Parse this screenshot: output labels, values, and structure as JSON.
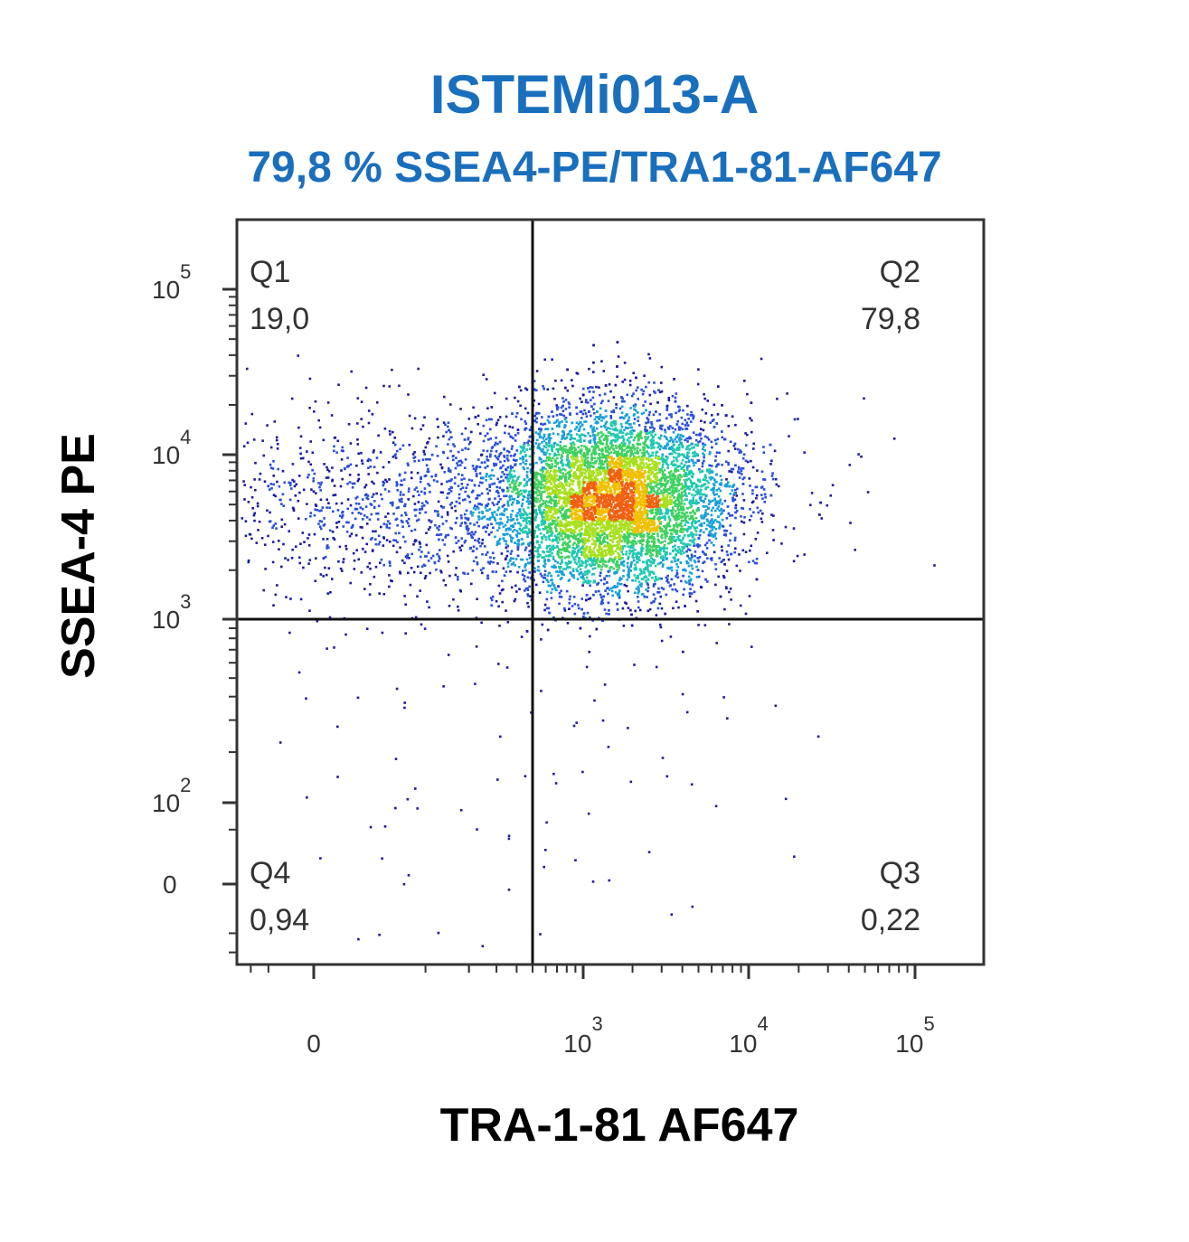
{
  "title": "ISTEMi013-A",
  "subtitle": "79,8 % SSEA4-PE/TRA1-81-AF647",
  "colors": {
    "title": "#1a6fbd",
    "density_scale": [
      "#1c1c9c",
      "#2a4fd8",
      "#1aa0d8",
      "#20c8b0",
      "#40d060",
      "#a8e020",
      "#f0c000",
      "#f06010"
    ]
  },
  "chart_data": {
    "type": "scatter",
    "subtype": "flow-cytometry density dot plot (pseudocolor)",
    "xlabel": "TRA-1-81 AF647",
    "ylabel": "SSEA-4 PE",
    "x_scale": "biexponential",
    "y_scale": "biexponential",
    "x_ticks": [
      {
        "value": 0,
        "base": "0",
        "exp": ""
      },
      {
        "value": 1000,
        "base": "10",
        "exp": "3"
      },
      {
        "value": 10000,
        "base": "10",
        "exp": "4"
      },
      {
        "value": 100000,
        "base": "10",
        "exp": "5"
      }
    ],
    "y_ticks": [
      {
        "value": 0,
        "base": "0",
        "exp": ""
      },
      {
        "value": 100,
        "base": "10",
        "exp": "2"
      },
      {
        "value": 1000,
        "base": "10",
        "exp": "3"
      },
      {
        "value": 10000,
        "base": "10",
        "exp": "4"
      },
      {
        "value": 100000,
        "base": "10",
        "exp": "5"
      }
    ],
    "gates": {
      "x": 500,
      "y": 1000
    },
    "quadrants": [
      {
        "name": "Q1",
        "value": "19,0",
        "position": "top-left"
      },
      {
        "name": "Q2",
        "value": "79,8",
        "position": "top-right"
      },
      {
        "name": "Q3",
        "value": "0,22",
        "position": "bottom-right"
      },
      {
        "name": "Q4",
        "value": "0,94",
        "position": "bottom-left"
      }
    ],
    "populations": [
      {
        "center": [
          1500,
          5500
        ],
        "spread_decades": [
          0.35,
          0.28
        ],
        "share": 0.798
      },
      {
        "center": [
          130,
          5000
        ],
        "spread_decades": [
          0.9,
          0.3
        ],
        "share": 0.19
      },
      {
        "center": [
          120,
          100
        ],
        "spread_decades": [
          0.8,
          0.9
        ],
        "share": 0.0094
      },
      {
        "center": [
          3000,
          300
        ],
        "spread_decades": [
          0.5,
          0.3
        ],
        "share": 0.0022
      }
    ],
    "grid": false,
    "legend": "none"
  }
}
